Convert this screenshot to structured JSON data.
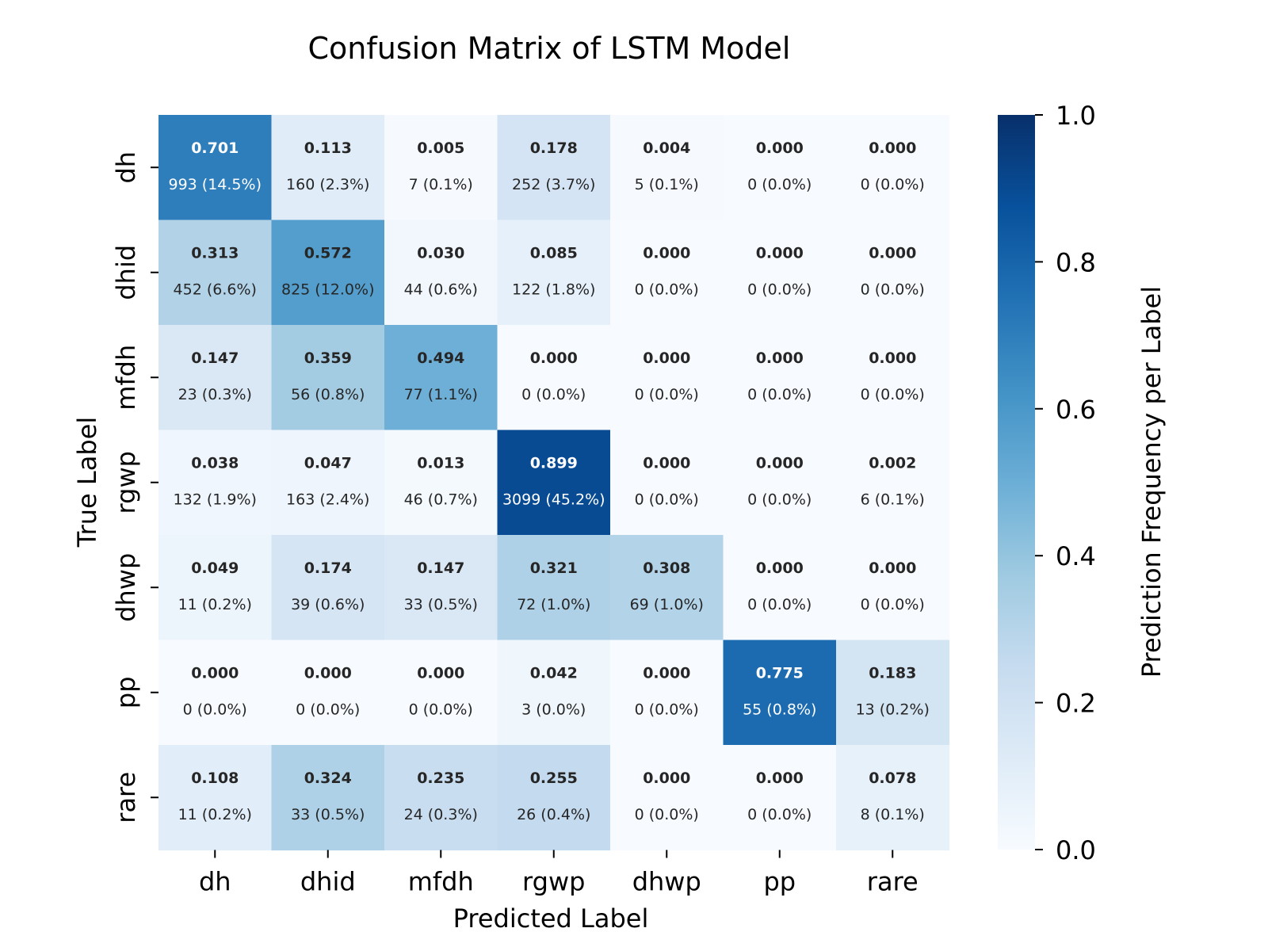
{
  "chart_data": {
    "type": "heatmap",
    "title": "Confusion Matrix of LSTM Model",
    "xlabel": "Predicted Label",
    "ylabel": "True Label",
    "colorbar_label": "Prediction Frequency per Label",
    "colorbar_range": [
      0.0,
      1.0
    ],
    "colorbar_ticks": [
      "0.0",
      "0.2",
      "0.4",
      "0.6",
      "0.8",
      "1.0"
    ],
    "colormap": [
      "#f7fbff",
      "#deebf7",
      "#c6dbef",
      "#9ecae1",
      "#6baed6",
      "#4292c6",
      "#2171b5",
      "#08519c",
      "#08306b"
    ],
    "x_categories": [
      "dh",
      "dhid",
      "mfdh",
      "rgwp",
      "dhwp",
      "pp",
      "rare"
    ],
    "y_categories": [
      "dh",
      "dhid",
      "mfdh",
      "rgwp",
      "dhwp",
      "pp",
      "rare"
    ],
    "values": [
      [
        0.701,
        0.113,
        0.005,
        0.178,
        0.004,
        0.0,
        0.0
      ],
      [
        0.313,
        0.572,
        0.03,
        0.085,
        0.0,
        0.0,
        0.0
      ],
      [
        0.147,
        0.359,
        0.494,
        0.0,
        0.0,
        0.0,
        0.0
      ],
      [
        0.038,
        0.047,
        0.013,
        0.899,
        0.0,
        0.0,
        0.002
      ],
      [
        0.049,
        0.174,
        0.147,
        0.321,
        0.308,
        0.0,
        0.0
      ],
      [
        0.0,
        0.0,
        0.0,
        0.042,
        0.0,
        0.775,
        0.183
      ],
      [
        0.108,
        0.324,
        0.235,
        0.255,
        0.0,
        0.0,
        0.078
      ]
    ],
    "value_labels": [
      [
        "0.701",
        "0.113",
        "0.005",
        "0.178",
        "0.004",
        "0.000",
        "0.000"
      ],
      [
        "0.313",
        "0.572",
        "0.030",
        "0.085",
        "0.000",
        "0.000",
        "0.000"
      ],
      [
        "0.147",
        "0.359",
        "0.494",
        "0.000",
        "0.000",
        "0.000",
        "0.000"
      ],
      [
        "0.038",
        "0.047",
        "0.013",
        "0.899",
        "0.000",
        "0.000",
        "0.002"
      ],
      [
        "0.049",
        "0.174",
        "0.147",
        "0.321",
        "0.308",
        "0.000",
        "0.000"
      ],
      [
        "0.000",
        "0.000",
        "0.000",
        "0.042",
        "0.000",
        "0.775",
        "0.183"
      ],
      [
        "0.108",
        "0.324",
        "0.235",
        "0.255",
        "0.000",
        "0.000",
        "0.078"
      ]
    ],
    "count_labels": [
      [
        "993 (14.5%)",
        "160 (2.3%)",
        "7 (0.1%)",
        "252 (3.7%)",
        "5 (0.1%)",
        "0 (0.0%)",
        "0 (0.0%)"
      ],
      [
        "452 (6.6%)",
        "825 (12.0%)",
        "44 (0.6%)",
        "122 (1.8%)",
        "0 (0.0%)",
        "0 (0.0%)",
        "0 (0.0%)"
      ],
      [
        "23 (0.3%)",
        "56 (0.8%)",
        "77 (1.1%)",
        "0 (0.0%)",
        "0 (0.0%)",
        "0 (0.0%)",
        "0 (0.0%)"
      ],
      [
        "132 (1.9%)",
        "163 (2.4%)",
        "46 (0.7%)",
        "3099 (45.2%)",
        "0 (0.0%)",
        "0 (0.0%)",
        "6 (0.1%)"
      ],
      [
        "11 (0.2%)",
        "39 (0.6%)",
        "33 (0.5%)",
        "72 (1.0%)",
        "69 (1.0%)",
        "0 (0.0%)",
        "0 (0.0%)"
      ],
      [
        "0 (0.0%)",
        "0 (0.0%)",
        "0 (0.0%)",
        "3 (0.0%)",
        "0 (0.0%)",
        "55 (0.8%)",
        "13 (0.2%)"
      ],
      [
        "11 (0.2%)",
        "33 (0.5%)",
        "24 (0.3%)",
        "26 (0.4%)",
        "0 (0.0%)",
        "0 (0.0%)",
        "8 (0.1%)"
      ]
    ]
  }
}
